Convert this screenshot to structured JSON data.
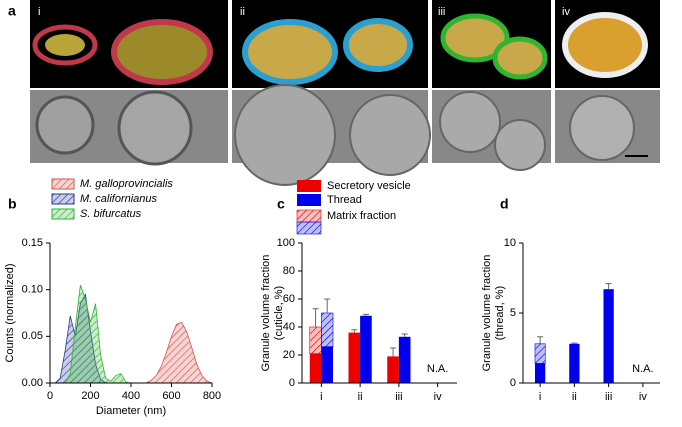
{
  "figure": {
    "panel_label": "a",
    "image_labels": [
      "i",
      "ii",
      "iii",
      "iv"
    ]
  },
  "chart_data": [
    {
      "type": "area",
      "panel_label": "b",
      "xlabel": "Diameter (nm)",
      "ylabel": "Counts (normalized)",
      "x": [
        0,
        25,
        50,
        75,
        100,
        125,
        150,
        175,
        200,
        225,
        250,
        275,
        300,
        325,
        350,
        375,
        400,
        425,
        450,
        475,
        500,
        525,
        550,
        575,
        600,
        625,
        650,
        675,
        700,
        725,
        750,
        775,
        800
      ],
      "series": [
        {
          "name": "M. galloprovincialis",
          "color": "#d9534f",
          "values": [
            0,
            0,
            0,
            0,
            0,
            0,
            0,
            0,
            0,
            0,
            0,
            0,
            0,
            0,
            0,
            0,
            0,
            0,
            0,
            0,
            0.003,
            0.008,
            0.018,
            0.033,
            0.05,
            0.063,
            0.065,
            0.055,
            0.038,
            0.02,
            0.008,
            0.002,
            0
          ]
        },
        {
          "name": "M. californianus",
          "color": "#2a3a9a",
          "values": [
            0,
            0,
            0.005,
            0.035,
            0.072,
            0.05,
            0.085,
            0.095,
            0.055,
            0.02,
            0.004,
            0,
            0,
            0,
            0,
            0,
            0,
            0,
            0,
            0,
            0,
            0,
            0,
            0,
            0,
            0,
            0,
            0,
            0,
            0,
            0,
            0,
            0
          ]
        },
        {
          "name": "S. bifurcatus",
          "color": "#2fb52f",
          "values": [
            0,
            0,
            0,
            0,
            0.01,
            0.06,
            0.105,
            0.09,
            0.065,
            0.085,
            0.03,
            0.005,
            0.002,
            0.008,
            0.01,
            0.001,
            0,
            0,
            0,
            0,
            0,
            0,
            0,
            0,
            0,
            0,
            0,
            0,
            0,
            0,
            0,
            0,
            0
          ]
        }
      ],
      "xlim": [
        0,
        800
      ],
      "xticks": [
        0,
        200,
        400,
        600,
        800
      ],
      "ylim": [
        0,
        0.15
      ],
      "yticks": [
        {
          "value": 0,
          "label": "0.00"
        },
        {
          "value": 0.05,
          "label": "0.05"
        },
        {
          "value": 0.1,
          "label": "0.10"
        },
        {
          "value": 0.15,
          "label": "0.15"
        }
      ]
    },
    {
      "type": "bar",
      "panel_label": "c",
      "ylabel": [
        "Granule volume fraction",
        "(cuticle, %)"
      ],
      "categories": [
        "i",
        "ii",
        "iii",
        "iv"
      ],
      "series": [
        {
          "name": "Secretory vesicle",
          "color": "#ee0000",
          "values": [
            21,
            36,
            19,
            null
          ],
          "matrix_values": [
            19,
            null,
            null,
            null
          ],
          "errors": [
            13,
            2,
            6,
            null
          ]
        },
        {
          "name": "Thread",
          "color": "#0000ee",
          "values": [
            26,
            48,
            33,
            null
          ],
          "matrix_values": [
            24,
            null,
            null,
            null
          ],
          "errors": [
            10,
            1,
            2,
            null
          ]
        }
      ],
      "matrix_legend": "Matrix fraction",
      "na_label": "N.A.",
      "ylim": [
        0,
        100
      ],
      "yticks": [
        0,
        20,
        40,
        60,
        80,
        100
      ]
    },
    {
      "type": "bar",
      "panel_label": "d",
      "ylabel": [
        "Granule volume fraction",
        "(thread, %)"
      ],
      "categories": [
        "i",
        "ii",
        "iii",
        "iv"
      ],
      "series": [
        {
          "color": "#0000ee",
          "values": [
            1.4,
            2.8,
            6.7,
            null
          ],
          "matrix_values": [
            1.4,
            null,
            null,
            null
          ],
          "errors": [
            0.5,
            0.05,
            0.4,
            null
          ]
        }
      ],
      "na_label": "N.A.",
      "ylim": [
        0,
        10
      ],
      "yticks": [
        0,
        5,
        10
      ]
    }
  ]
}
